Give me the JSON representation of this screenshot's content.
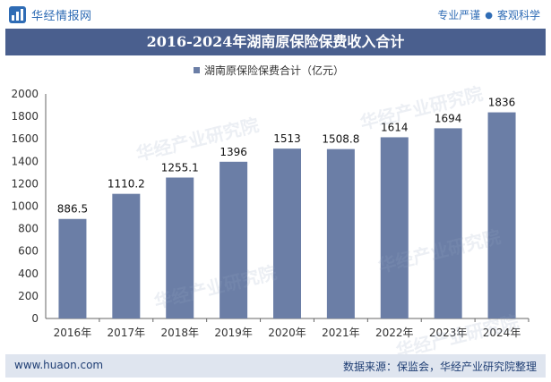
{
  "header": {
    "logo_text": "华经情报网",
    "tagline_left": "专业严谨",
    "tagline_right": "客观科学"
  },
  "title": "2016-2024年湖南原保险保费收入合计",
  "footer": {
    "url": "www.huaon.com",
    "source": "数据来源：保监会，华经产业研究院整理"
  },
  "watermark": "华经产业研究院",
  "colors": {
    "bar": "#6b7ea6",
    "title_bg": "#4a5f8e",
    "brand": "#2f6cb5",
    "footer_bg": "#dfe5ef"
  },
  "chart_data": {
    "type": "bar",
    "title": "2016-2024年湖南原保险保费收入合计",
    "categories": [
      "2016年",
      "2017年",
      "2018年",
      "2019年",
      "2020年",
      "2021年",
      "2022年",
      "2023年",
      "2024年"
    ],
    "series": [
      {
        "name": "湖南原保险保费合计（亿元）",
        "values": [
          886.5,
          1110.2,
          1255.1,
          1396,
          1513,
          1508.8,
          1614,
          1694,
          1836
        ],
        "labels": [
          "886.5",
          "1110.2",
          "1255.1",
          "1396",
          "1513",
          "1508.8",
          "1614",
          "1694",
          "1836"
        ]
      }
    ],
    "yticks": [
      "0",
      "200",
      "400",
      "600",
      "800",
      "1000",
      "1200",
      "1400",
      "1600",
      "1800",
      "2000"
    ],
    "ylim": [
      0,
      2000
    ],
    "xlabel": "",
    "ylabel": "",
    "legend_position": "top-center"
  }
}
